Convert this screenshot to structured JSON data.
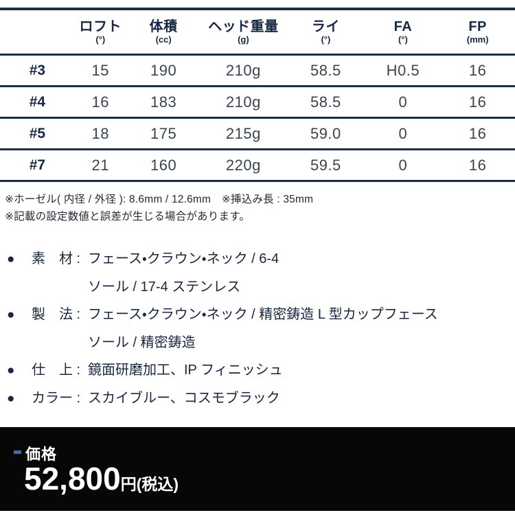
{
  "table": {
    "columns": [
      {
        "label": "ロフト",
        "unit": "(°)"
      },
      {
        "label": "体積",
        "unit": "(cc)"
      },
      {
        "label": "ヘッド重量",
        "unit": "(g)"
      },
      {
        "label": "ライ",
        "unit": "(°)"
      },
      {
        "label": "FA",
        "unit": "(°)"
      },
      {
        "label": "FP",
        "unit": "(mm)"
      }
    ],
    "rows": [
      {
        "club": "#3",
        "loft": "15",
        "volume": "190",
        "head_weight": "210g",
        "lie": "58.5",
        "fa": "H0.5",
        "fp": "16"
      },
      {
        "club": "#4",
        "loft": "16",
        "volume": "183",
        "head_weight": "210g",
        "lie": "58.5",
        "fa": "0",
        "fp": "16"
      },
      {
        "club": "#5",
        "loft": "18",
        "volume": "175",
        "head_weight": "215g",
        "lie": "59.0",
        "fa": "0",
        "fp": "16"
      },
      {
        "club": "#7",
        "loft": "21",
        "volume": "160",
        "head_weight": "220g",
        "lie": "59.5",
        "fa": "0",
        "fp": "16"
      }
    ]
  },
  "notes": [
    "※ホーゼル( 内径 / 外径 ): 8.6mm / 12.6mm　※挿込み長 : 35mm",
    "※記載の設定数値と誤差が生じる場合があります。"
  ],
  "specs": [
    {
      "bullet": "●",
      "label": "素　材 :",
      "line1": "フェース・クラウン・ネック / 6-4",
      "line2": "ソール / 17-4 ステンレス"
    },
    {
      "bullet": "●",
      "label": "製　法 :",
      "line1": "フェース・クラウン・ネック / 精密鋳造 L 型カップフェース",
      "line2": "ソール / 精密鋳造"
    },
    {
      "bullet": "●",
      "label": "仕　上 :",
      "line1": "鏡面研磨加工、IP フィニッシュ"
    },
    {
      "bullet": "●",
      "label": "カラー :",
      "line1": "スカイブルー、コスモブラック"
    }
  ],
  "price": {
    "label": "価格",
    "amount": "52,800",
    "unit": "円(税込)"
  },
  "colors": {
    "navy_text": "#152742",
    "value_text": "#3a4450",
    "table_border": "#1c2d48",
    "price_bar_background": "#070707",
    "price_dash_blue": "#3e6bb4",
    "price_text": "#ffffff"
  }
}
